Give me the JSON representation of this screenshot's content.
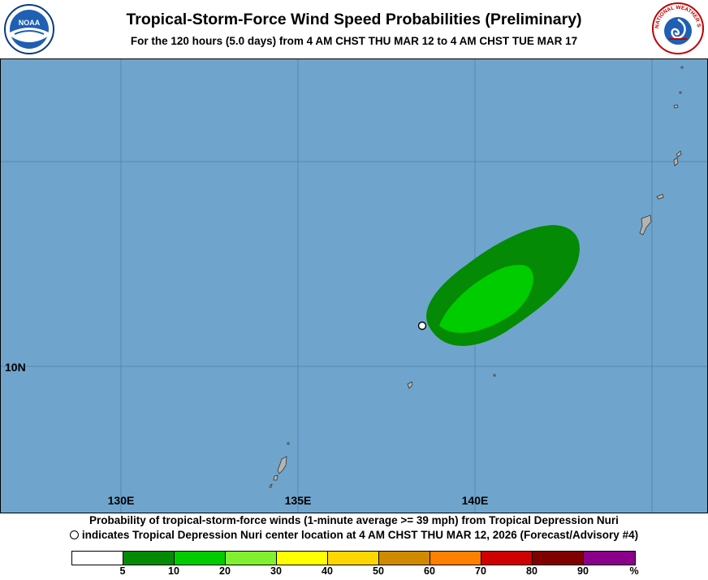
{
  "header": {
    "title": "Tropical-Storm-Force Wind Speed Probabilities (Preliminary)",
    "subtitle": "For the 120 hours (5.0 days) from 4 AM CHST THU MAR 12 to 4 AM CHST TUE MAR 17",
    "left_logo": "noaa-logo",
    "right_logo": "nws-logo",
    "left_logo_text": "NOAA",
    "right_logo_text": "NATIONAL WEATHER SERVICE"
  },
  "map": {
    "lon_labels": [
      "130E",
      "135E",
      "140E"
    ],
    "lat_labels": [
      "10N"
    ],
    "ocean_color": "#6fa5cc",
    "land_color": "#b4b4b4",
    "storm_marker": "white-circle"
  },
  "footer": {
    "line1": "Probability of tropical-storm-force winds (1-minute average >= 39 mph) from Tropical Depression Nuri",
    "line2": "indicates Tropical Depression Nuri center location at 4 AM CHST THU MAR 12, 2026 (Forecast/Advisory #4)"
  },
  "legend": {
    "colors": [
      "#ffffff",
      "#048a04",
      "#00cc00",
      "#80f030",
      "#ffff00",
      "#ffd700",
      "#d08a00",
      "#ff8000",
      "#d00000",
      "#800000",
      "#8a008a"
    ],
    "labels": [
      "5",
      "10",
      "20",
      "30",
      "40",
      "50",
      "60",
      "70",
      "80",
      "90",
      "%"
    ]
  }
}
